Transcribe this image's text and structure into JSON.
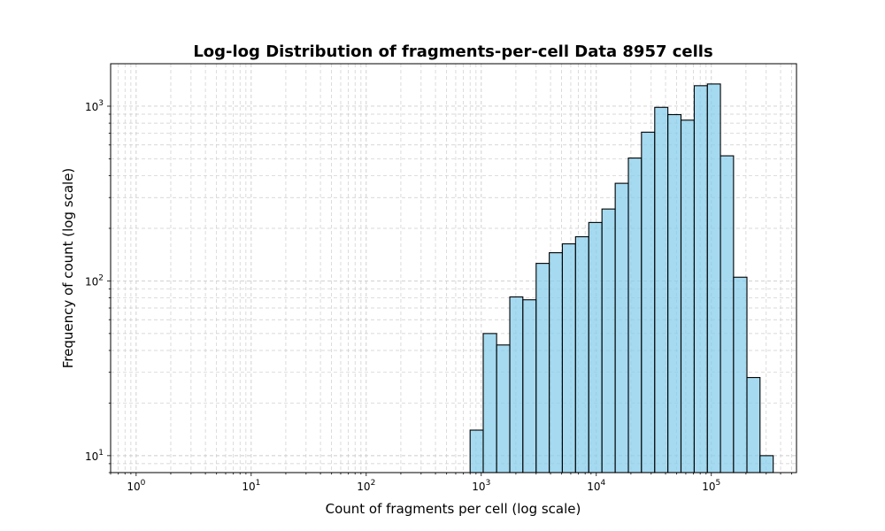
{
  "chart_data": {
    "type": "bar",
    "title": "Log-log Distribution of fragments-per-cell Data 8957 cells",
    "xlabel": "Count of fragments per cell (log scale)",
    "ylabel": "Frequency of count (log scale)",
    "xscale": "log",
    "yscale": "log",
    "xlim": [
      0.6,
      550000
    ],
    "ylim": [
      8,
      1750
    ],
    "grid": true,
    "grid_style": "dashed, major and minor",
    "bar_color": "#87CEEB",
    "bar_edge_color": "#000000",
    "x_ticks": [
      {
        "base": "10",
        "exp": "0",
        "value": 1
      },
      {
        "base": "10",
        "exp": "1",
        "value": 10
      },
      {
        "base": "10",
        "exp": "2",
        "value": 100
      },
      {
        "base": "10",
        "exp": "3",
        "value": 1000
      },
      {
        "base": "10",
        "exp": "4",
        "value": 10000
      },
      {
        "base": "10",
        "exp": "5",
        "value": 100000
      }
    ],
    "y_ticks": [
      {
        "base": "10",
        "exp": "1",
        "value": 10
      },
      {
        "base": "10",
        "exp": "2",
        "value": 100
      },
      {
        "base": "10",
        "exp": "3",
        "value": 1000
      }
    ],
    "bins": [
      {
        "x0": 800,
        "x1": 1040,
        "count": 14
      },
      {
        "x0": 1040,
        "x1": 1360,
        "count": 50
      },
      {
        "x0": 1360,
        "x1": 1770,
        "count": 43
      },
      {
        "x0": 1770,
        "x1": 2300,
        "count": 81
      },
      {
        "x0": 2300,
        "x1": 3000,
        "count": 78
      },
      {
        "x0": 3000,
        "x1": 3900,
        "count": 126
      },
      {
        "x0": 3900,
        "x1": 5070,
        "count": 145
      },
      {
        "x0": 5070,
        "x1": 6600,
        "count": 163
      },
      {
        "x0": 6600,
        "x1": 8600,
        "count": 179
      },
      {
        "x0": 8600,
        "x1": 11200,
        "count": 216
      },
      {
        "x0": 11200,
        "x1": 14600,
        "count": 258
      },
      {
        "x0": 14600,
        "x1": 19000,
        "count": 362
      },
      {
        "x0": 19000,
        "x1": 24700,
        "count": 505
      },
      {
        "x0": 24700,
        "x1": 32200,
        "count": 710
      },
      {
        "x0": 32200,
        "x1": 41900,
        "count": 985
      },
      {
        "x0": 41900,
        "x1": 54500,
        "count": 895
      },
      {
        "x0": 54500,
        "x1": 71000,
        "count": 832
      },
      {
        "x0": 71000,
        "x1": 92400,
        "count": 1310
      },
      {
        "x0": 92400,
        "x1": 120000,
        "count": 1340
      },
      {
        "x0": 120000,
        "x1": 156000,
        "count": 520
      },
      {
        "x0": 156000,
        "x1": 204000,
        "count": 105
      },
      {
        "x0": 204000,
        "x1": 265000,
        "count": 28
      },
      {
        "x0": 265000,
        "x1": 345000,
        "count": 10
      }
    ]
  }
}
